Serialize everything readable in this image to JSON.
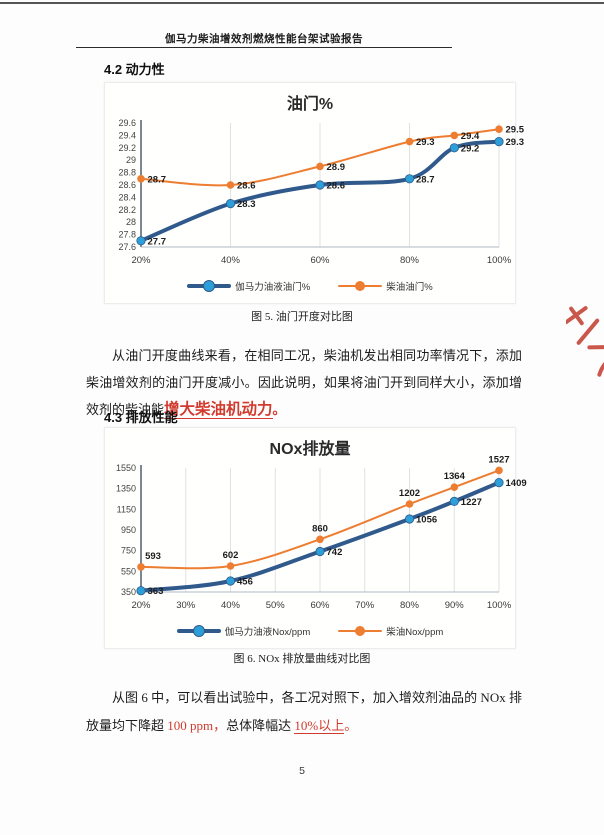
{
  "header": {
    "title": "伽马力柴油增效剂燃烧性能台架试验报告"
  },
  "sections": {
    "s42_heading": "4.2 动力性",
    "s43_heading": "4.3 排放性能"
  },
  "figure5_caption": "图 5. 油门开度对比图",
  "figure6_caption": "图 6. NOx 排放量曲线对比图",
  "paragraph1": {
    "lead": "从油门开度曲线来看，在相同工况，柴油机发出相同功率情况下，添加柴油增效剂的油门开度减小。因此说明，如果将油门开到同样大小，添加增效剂的柴油能",
    "highlight": "增大柴油机动力",
    "tail": "。"
  },
  "paragraph2": {
    "part1": "从图 6 中，可以看出试验中，各工况对照下，加入增效剂油品的 NOx 排放量均下降超 ",
    "red1": "100 ppm，",
    "part2": "总体降幅达 ",
    "red2": "10%以上",
    "tail": "。"
  },
  "page_number": "5",
  "colors": {
    "highlight_red": "#d23a2e",
    "stamp_red": "#c23b2e",
    "series_blue_line": "#315a8c",
    "series_blue_marker": "#2d9fd8",
    "series_orange": "#ed7d31",
    "grid": "#dedede",
    "axis_left": "#44546a",
    "axis_bottom": "#aeb8c2"
  },
  "chart_data": [
    {
      "type": "line",
      "title": "油门%",
      "x": [
        20,
        40,
        60,
        80,
        90,
        100
      ],
      "x_ticks": [
        20,
        40,
        60,
        80,
        100
      ],
      "x_tick_labels": [
        "20%",
        "40%",
        "60%",
        "80%",
        "100%"
      ],
      "ylim": [
        27.6,
        29.6
      ],
      "y_step": 0.2,
      "grid": "vertical",
      "legend_position": "bottom",
      "series": [
        {
          "name": "伽马力油液油门%",
          "values": [
            27.7,
            28.3,
            28.6,
            28.7,
            29.2,
            29.3
          ],
          "color": "#315a8c",
          "marker": "#2d9fd8",
          "width": 4,
          "label_side": "right"
        },
        {
          "name": "柴油油门%",
          "values": [
            28.7,
            28.6,
            28.9,
            29.3,
            29.4,
            29.5
          ],
          "color": "#ed7d31",
          "marker": "#ed7d31",
          "width": 2,
          "label_side": "right"
        }
      ]
    },
    {
      "type": "line",
      "title": "NOx排放量",
      "x": [
        20,
        40,
        60,
        80,
        90,
        100
      ],
      "x_ticks": [
        20,
        30,
        40,
        50,
        60,
        70,
        80,
        90,
        100
      ],
      "x_tick_labels": [
        "20%",
        "30%",
        "40%",
        "50%",
        "60%",
        "70%",
        "80%",
        "90%",
        "100%"
      ],
      "ylim": [
        350,
        1550
      ],
      "y_step": 200,
      "grid": "vertical",
      "legend_position": "bottom",
      "series": [
        {
          "name": "伽马力油液Nox/ppm",
          "values": [
            363,
            456,
            742,
            1056,
            1227,
            1409
          ],
          "color": "#315a8c",
          "marker": "#2d9fd8",
          "width": 4,
          "label_side": "right"
        },
        {
          "name": "柴油Nox/ppm",
          "values": [
            593,
            602,
            860,
            1202,
            1364,
            1527
          ],
          "color": "#ed7d31",
          "marker": "#ed7d31",
          "width": 2,
          "label_side": "above"
        }
      ]
    }
  ]
}
